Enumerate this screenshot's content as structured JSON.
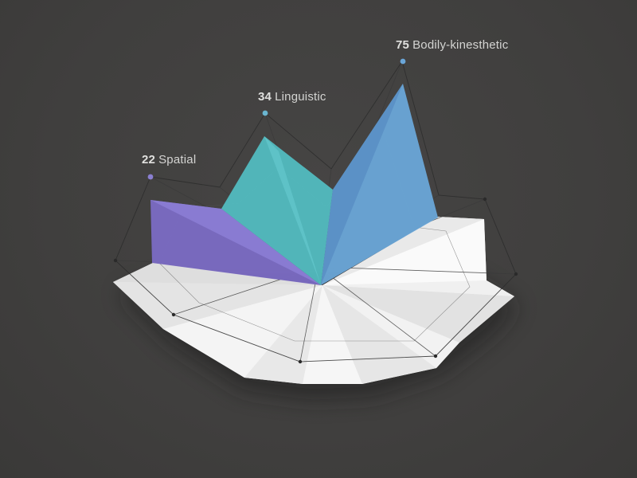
{
  "chart_data": {
    "type": "radar",
    "scale_max": 100,
    "axes": [
      {
        "name": "Spatial",
        "value": 22,
        "color": "#7b6cc4"
      },
      {
        "name": "Linguistic",
        "value": 34,
        "color": "#52bcc0"
      },
      {
        "name": "Bodily-kinesthetic",
        "value": 75,
        "color": "#6aa6d8"
      }
    ],
    "floor_color": "#ececec",
    "background": "#424140",
    "grid": true,
    "labels": [
      {
        "value": "22",
        "name": "Spatial",
        "dot_color": "#8a7fd1"
      },
      {
        "value": "34",
        "name": "Linguistic",
        "dot_color": "#6ab6d0"
      },
      {
        "value": "75",
        "name": "Bodily-kinesthetic",
        "dot_color": "#6aa6d8"
      }
    ]
  }
}
